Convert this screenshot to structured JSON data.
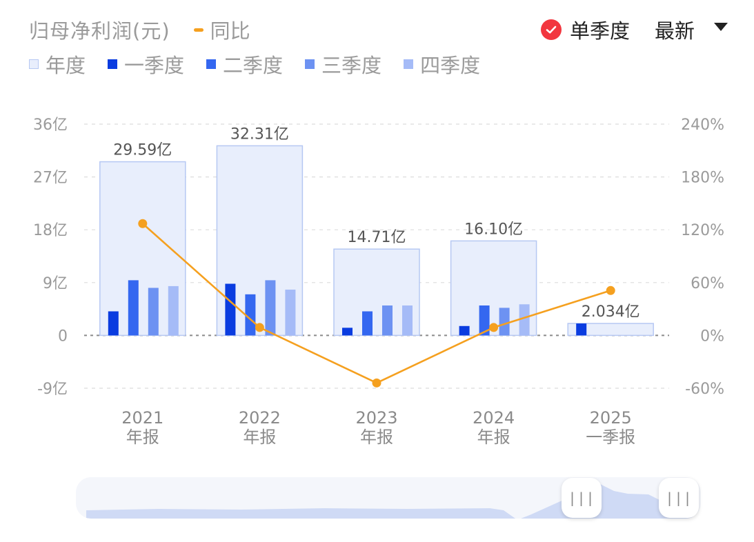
{
  "header": {
    "title": "归母净利润(元)",
    "yoy_label": "同比",
    "single_quarter_label": "单季度",
    "latest_label": "最新"
  },
  "legend": [
    {
      "label": "年度",
      "color": "#e8eefc",
      "border": "#b6c8f3"
    },
    {
      "label": "一季度",
      "color": "#0a3ce0"
    },
    {
      "label": "二季度",
      "color": "#3467f0"
    },
    {
      "label": "三季度",
      "color": "#6d92f2"
    },
    {
      "label": "四季度",
      "color": "#a5bbf7"
    }
  ],
  "colors": {
    "yoy_line": "#f5a01f",
    "annual_fill": "#e8eefc",
    "annual_border": "#b6c8f3",
    "axis_text": "#9a9a9a",
    "check_red": "#f2363f"
  },
  "slider": {
    "handle_left_icon": "|||",
    "handle_right_icon": "|||"
  },
  "chart_data": {
    "type": "bar",
    "categories": [
      "2021 年报",
      "2022 年报",
      "2023 年报",
      "2024 年报",
      "2025 一季报"
    ],
    "category_lines": [
      [
        "2021",
        "年报"
      ],
      [
        "2022",
        "年报"
      ],
      [
        "2023",
        "年报"
      ],
      [
        "2024",
        "年报"
      ],
      [
        "2025",
        "一季报"
      ]
    ],
    "annual_values": [
      29.59,
      32.31,
      14.71,
      16.1,
      2.034
    ],
    "annual_labels": [
      "29.59亿",
      "32.31亿",
      "14.71亿",
      "16.10亿",
      "2.034亿"
    ],
    "series": [
      {
        "name": "一季度",
        "values": [
          4.1,
          8.8,
          1.3,
          1.6,
          2.034
        ]
      },
      {
        "name": "二季度",
        "values": [
          9.4,
          7.0,
          4.1,
          5.1,
          null
        ]
      },
      {
        "name": "三季度",
        "values": [
          8.1,
          9.4,
          5.1,
          4.7,
          null
        ]
      },
      {
        "name": "四季度",
        "values": [
          8.4,
          7.8,
          5.1,
          5.3,
          null
        ]
      }
    ],
    "yoy": {
      "name": "同比",
      "values": [
        127,
        9,
        -54,
        9,
        51
      ]
    },
    "y_left": {
      "min": -9,
      "max": 36,
      "ticks": [
        36,
        27,
        18,
        9,
        0,
        -9
      ],
      "tick_labels": [
        "36亿",
        "27亿",
        "18亿",
        "9亿",
        "0",
        "-9亿"
      ]
    },
    "y_right": {
      "min": -60,
      "max": 240,
      "ticks": [
        240,
        180,
        120,
        60,
        0,
        -60
      ],
      "tick_labels": [
        "240%",
        "180%",
        "120%",
        "60%",
        "0%",
        "-60%"
      ]
    },
    "grid": true
  }
}
